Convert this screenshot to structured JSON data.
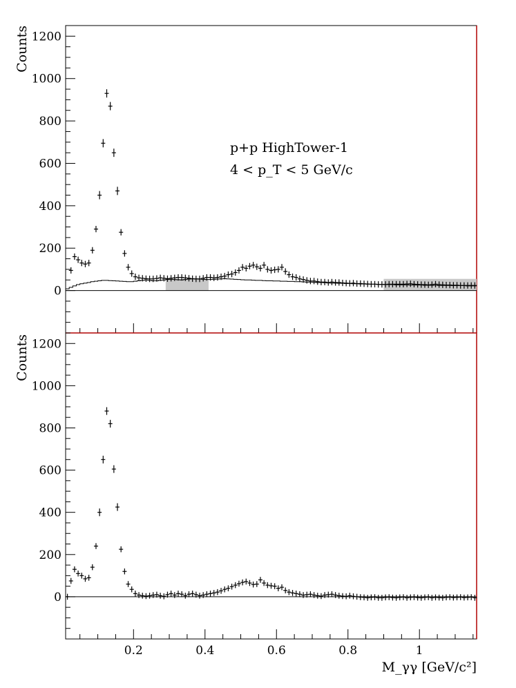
{
  "chart_data": [
    {
      "type": "scatter",
      "panel": "top",
      "ylabel": "Counts",
      "xlabel": "",
      "xlim": [
        0.01,
        1.16
      ],
      "ylim": [
        -200,
        1250
      ],
      "y_ticks": [
        0,
        200,
        400,
        600,
        800,
        1000,
        1200
      ],
      "annotation": [
        "p+p HighTower-1",
        "4 < p_T < 5 GeV/c"
      ],
      "shaded_bands": [
        [
          0.29,
          0.41
        ],
        [
          0.9,
          1.16
        ]
      ],
      "series": [
        {
          "style": "points-with-errors",
          "x": [
            0.025,
            0.035,
            0.045,
            0.055,
            0.065,
            0.075,
            0.085,
            0.095,
            0.105,
            0.115,
            0.125,
            0.135,
            0.145,
            0.155,
            0.165,
            0.175,
            0.185,
            0.195,
            0.205,
            0.215,
            0.225,
            0.235,
            0.245,
            0.255,
            0.265,
            0.275,
            0.285,
            0.295,
            0.305,
            0.315,
            0.325,
            0.335,
            0.345,
            0.355,
            0.365,
            0.375,
            0.385,
            0.395,
            0.405,
            0.415,
            0.425,
            0.435,
            0.445,
            0.455,
            0.465,
            0.475,
            0.485,
            0.495,
            0.505,
            0.515,
            0.525,
            0.535,
            0.545,
            0.555,
            0.565,
            0.575,
            0.585,
            0.595,
            0.605,
            0.615,
            0.625,
            0.635,
            0.645,
            0.655,
            0.665,
            0.675,
            0.685,
            0.695,
            0.705,
            0.715,
            0.725,
            0.735,
            0.745,
            0.755,
            0.765,
            0.775,
            0.785,
            0.795,
            0.805,
            0.815,
            0.825,
            0.835,
            0.845,
            0.855,
            0.865,
            0.875,
            0.885,
            0.895,
            0.905,
            0.915,
            0.925,
            0.935,
            0.945,
            0.955,
            0.965,
            0.975,
            0.985,
            0.995,
            1.005,
            1.015,
            1.025,
            1.035,
            1.045,
            1.055,
            1.065,
            1.075,
            1.085,
            1.095,
            1.105,
            1.115,
            1.125,
            1.135,
            1.145,
            1.155
          ],
          "y": [
            95,
            160,
            145,
            130,
            125,
            130,
            190,
            290,
            450,
            695,
            930,
            870,
            650,
            470,
            275,
            175,
            110,
            80,
            65,
            60,
            58,
            56,
            55,
            55,
            57,
            60,
            58,
            56,
            58,
            60,
            62,
            62,
            60,
            58,
            56,
            55,
            55,
            58,
            62,
            62,
            60,
            62,
            65,
            68,
            75,
            78,
            85,
            95,
            110,
            105,
            115,
            120,
            112,
            105,
            120,
            100,
            95,
            98,
            100,
            110,
            90,
            75,
            65,
            62,
            55,
            52,
            48,
            45,
            45,
            42,
            40,
            40,
            38,
            40,
            38,
            38,
            36,
            35,
            34,
            35,
            33,
            33,
            32,
            31,
            30,
            30,
            29,
            29,
            29,
            30,
            30,
            30,
            30,
            30,
            31,
            32,
            30,
            29,
            28,
            28,
            27,
            28,
            30,
            28,
            27,
            26,
            26,
            25,
            25,
            24,
            24,
            24,
            24,
            24
          ],
          "yerr": 15
        },
        {
          "style": "step-histogram",
          "x_edges_start": 0.01,
          "bin_width": 0.01,
          "values": [
            8,
            15,
            22,
            28,
            32,
            35,
            38,
            42,
            44,
            46,
            48,
            48,
            47,
            46,
            45,
            44,
            43,
            42,
            42,
            44,
            46,
            48,
            50,
            48,
            46,
            46,
            48,
            50,
            52,
            53,
            52,
            51,
            50,
            52,
            54,
            55,
            55,
            54,
            53,
            52,
            52,
            53,
            54,
            55,
            56,
            55,
            54,
            53,
            52,
            51,
            50,
            50,
            49,
            48,
            48,
            47,
            46,
            46,
            45,
            45,
            44,
            44,
            43,
            43,
            42,
            42,
            41,
            40,
            40,
            39,
            38,
            38,
            37,
            36,
            35,
            35,
            34,
            34,
            33,
            33,
            32,
            32,
            31,
            31,
            30,
            30,
            30,
            29,
            29,
            28,
            28,
            28,
            27,
            27,
            27,
            27,
            26,
            26,
            26,
            26,
            25,
            25,
            25,
            25,
            24,
            24,
            24,
            24,
            23,
            23,
            23,
            23,
            22,
            22,
            22
          ]
        }
      ]
    },
    {
      "type": "scatter",
      "panel": "bottom",
      "ylabel": "Counts",
      "xlabel": "M_γγ [GeV/c²]",
      "xlim": [
        0.01,
        1.16
      ],
      "ylim": [
        -200,
        1250
      ],
      "x_ticks": [
        0.2,
        0.4,
        0.6,
        0.8,
        1
      ],
      "y_ticks": [
        0,
        200,
        400,
        600,
        800,
        1000,
        1200
      ],
      "series": [
        {
          "style": "points-with-errors",
          "x": [
            0.015,
            0.025,
            0.035,
            0.045,
            0.055,
            0.065,
            0.075,
            0.085,
            0.095,
            0.105,
            0.115,
            0.125,
            0.135,
            0.145,
            0.155,
            0.165,
            0.175,
            0.185,
            0.195,
            0.205,
            0.215,
            0.225,
            0.235,
            0.245,
            0.255,
            0.265,
            0.275,
            0.285,
            0.295,
            0.305,
            0.315,
            0.325,
            0.335,
            0.345,
            0.355,
            0.365,
            0.375,
            0.385,
            0.395,
            0.405,
            0.415,
            0.425,
            0.435,
            0.445,
            0.455,
            0.465,
            0.475,
            0.485,
            0.495,
            0.505,
            0.515,
            0.525,
            0.535,
            0.545,
            0.555,
            0.565,
            0.575,
            0.585,
            0.595,
            0.605,
            0.615,
            0.625,
            0.635,
            0.645,
            0.655,
            0.665,
            0.675,
            0.685,
            0.695,
            0.705,
            0.715,
            0.725,
            0.735,
            0.745,
            0.755,
            0.765,
            0.775,
            0.785,
            0.795,
            0.805,
            0.815,
            0.825,
            0.835,
            0.845,
            0.855,
            0.865,
            0.875,
            0.885,
            0.895,
            0.905,
            0.915,
            0.925,
            0.935,
            0.945,
            0.955,
            0.965,
            0.975,
            0.985,
            0.995,
            1.005,
            1.015,
            1.025,
            1.035,
            1.045,
            1.055,
            1.065,
            1.075,
            1.085,
            1.095,
            1.105,
            1.115,
            1.125,
            1.135,
            1.145,
            1.155
          ],
          "y": [
            0,
            75,
            130,
            110,
            100,
            85,
            90,
            140,
            240,
            400,
            650,
            880,
            820,
            605,
            425,
            225,
            120,
            60,
            35,
            15,
            8,
            5,
            3,
            5,
            8,
            10,
            5,
            2,
            10,
            15,
            8,
            15,
            12,
            5,
            12,
            15,
            10,
            5,
            8,
            12,
            15,
            18,
            22,
            28,
            35,
            40,
            48,
            55,
            62,
            68,
            72,
            65,
            58,
            60,
            80,
            65,
            55,
            52,
            50,
            40,
            45,
            30,
            22,
            18,
            15,
            12,
            8,
            10,
            12,
            8,
            5,
            3,
            8,
            10,
            12,
            8,
            5,
            3,
            2,
            5,
            2,
            0,
            -2,
            -3,
            -5,
            -3,
            -2,
            -5,
            -5,
            -3,
            -2,
            -4,
            -5,
            -3,
            -2,
            -5,
            -3,
            -2,
            -4,
            -5,
            -3,
            -2,
            -5,
            -3,
            -4,
            -5,
            -3,
            -2,
            -4,
            -3,
            -2,
            -4,
            -3,
            -2,
            -5
          ],
          "yerr": 14
        }
      ]
    }
  ]
}
